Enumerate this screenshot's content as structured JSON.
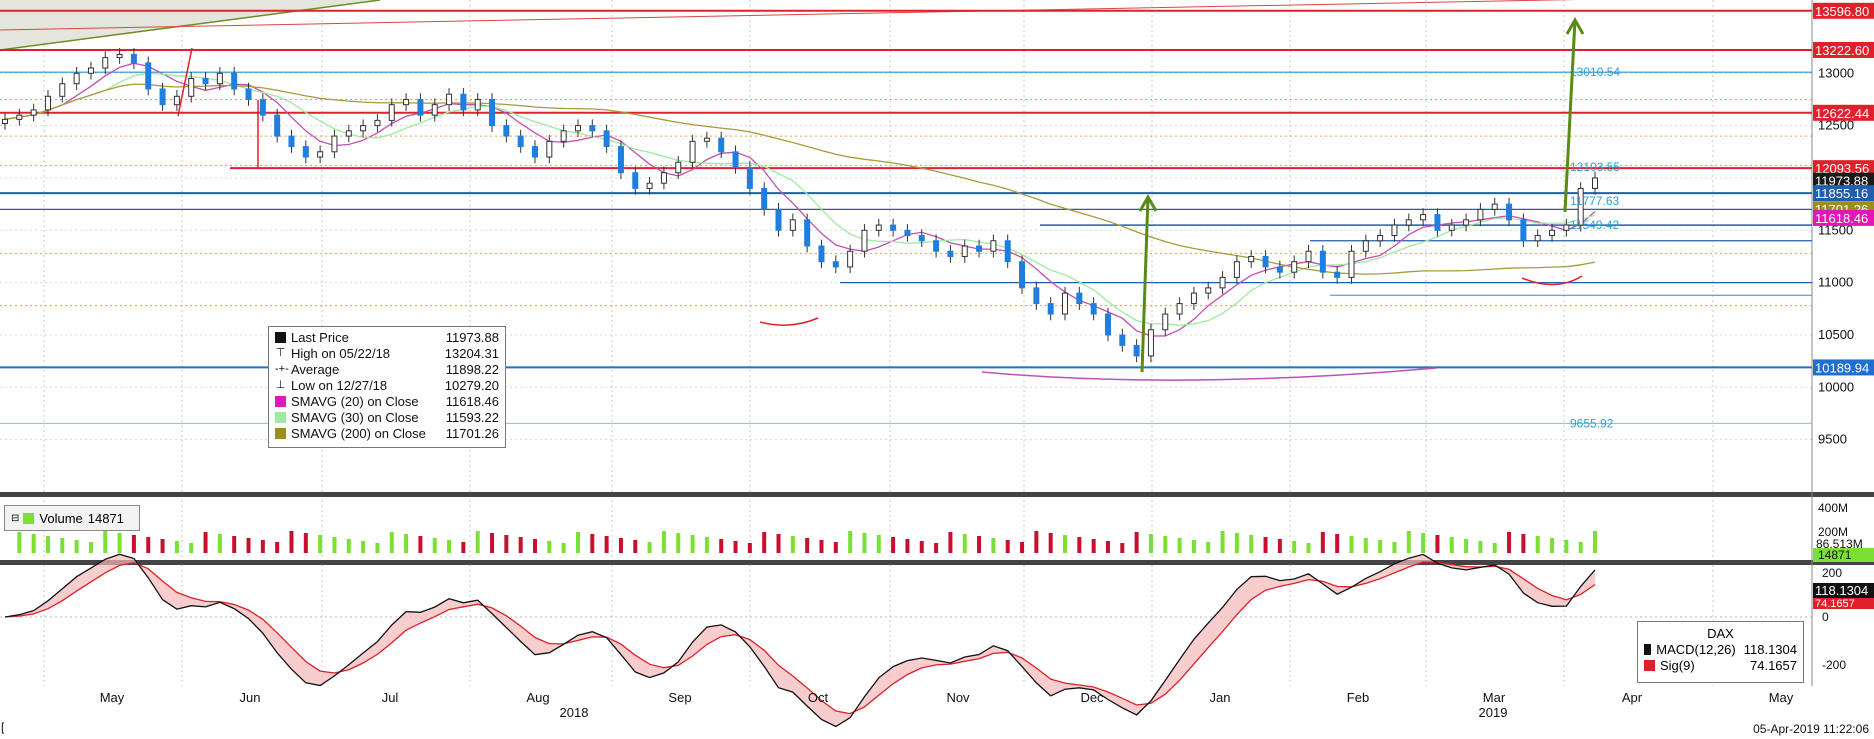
{
  "chart_data": {
    "type": "candlestick",
    "instrument": "DAX",
    "x_axis": {
      "months": [
        "May",
        "Jun",
        "Jul",
        "Aug",
        "Sep",
        "Oct",
        "Nov",
        "Dec",
        "Jan",
        "Feb",
        "Mar",
        "Apr",
        "May"
      ],
      "years": [
        "2018",
        "2019"
      ]
    },
    "y_axis": {
      "range": [
        9000,
        13700
      ],
      "ticks": [
        9500,
        10000,
        10500,
        11000,
        11500,
        12000,
        12500,
        13000
      ]
    },
    "price_tags": [
      {
        "value": "13596.80",
        "color": "#e0202a"
      },
      {
        "value": "13222.60",
        "color": "#e0202a"
      },
      {
        "value": "12622.44",
        "color": "#e0202a"
      },
      {
        "value": "12093.56",
        "color": "#e0202a"
      },
      {
        "value": "11973.88",
        "color": "#1a1a1a"
      },
      {
        "value": "11855.16",
        "color": "#1f5fb0"
      },
      {
        "value": "11701.26",
        "color": "#9a8f1e"
      },
      {
        "value": "11618.46",
        "color": "#e316b6"
      },
      {
        "value": "10189.94",
        "color": "#1f6fd0"
      }
    ],
    "annotations": [
      "13010.54",
      "12103.55",
      "11777.63",
      "11549.42",
      "9655.92"
    ],
    "legend": {
      "last_price": {
        "label": "Last Price",
        "value": "11973.88"
      },
      "high": {
        "label": "High on 05/22/18",
        "value": "13204.31"
      },
      "average": {
        "label": "Average",
        "value": "11898.22"
      },
      "low": {
        "label": "Low on 12/27/18",
        "value": "10279.20"
      },
      "sma20": {
        "label": "SMAVG (20)  on Close",
        "value": "11618.46",
        "color": "#e316b6"
      },
      "sma30": {
        "label": "SMAVG (30)  on Close",
        "value": "11593.22",
        "color": "#9eeaa0"
      },
      "sma200": {
        "label": "SMAVG (200)  on Close",
        "value": "11701.26",
        "color": "#9a8f1e"
      }
    },
    "closes": [
      12560,
      12600,
      12650,
      12780,
      12900,
      13000,
      13050,
      13150,
      13180,
      13100,
      12850,
      12700,
      12780,
      12950,
      12900,
      13000,
      12850,
      12750,
      12600,
      12400,
      12300,
      12200,
      12250,
      12400,
      12450,
      12500,
      12550,
      12700,
      12750,
      12600,
      12700,
      12800,
      12650,
      12750,
      12500,
      12400,
      12300,
      12200,
      12350,
      12450,
      12500,
      12450,
      12300,
      12050,
      11900,
      11950,
      12050,
      12150,
      12350,
      12380,
      12250,
      12100,
      11900,
      11700,
      11500,
      11600,
      11350,
      11200,
      11150,
      11300,
      11500,
      11550,
      11500,
      11450,
      11400,
      11300,
      11250,
      11350,
      11300,
      11400,
      11200,
      10950,
      10800,
      10700,
      10900,
      10800,
      10700,
      10500,
      10400,
      10300,
      10550,
      10700,
      10800,
      10900,
      10950,
      11050,
      11200,
      11250,
      11150,
      11100,
      11200,
      11300,
      11100,
      11050,
      11300,
      11400,
      11450,
      11550,
      11600,
      11650,
      11500,
      11550,
      11600,
      11700,
      11750,
      11600,
      11400,
      11450,
      11500,
      11550,
      11900,
      12000
    ],
    "volume_label": "Volume",
    "volume": {
      "last": "14871",
      "axis": [
        "400M",
        "200M"
      ],
      "avg": "86.513M"
    },
    "macd": {
      "title": "DAX",
      "macd_label": "MACD(12,26)",
      "macd_value": "118.1304",
      "sig_label": "Sig(9)",
      "sig_value": "74.1657",
      "axis": [
        "200",
        "0",
        "-200"
      ]
    }
  },
  "footer": {
    "timestamp": "05-Apr-2019 11:22:06",
    "left_mark": "["
  }
}
